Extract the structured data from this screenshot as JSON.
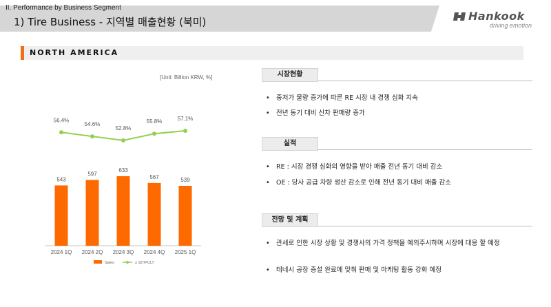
{
  "header": {
    "section_label": "II. Performance by Business Segment",
    "title": "1) Tire Business - 지역별 매출현황 (북미)"
  },
  "brand": {
    "logo_text": "Hankook",
    "tagline": "driving emotion"
  },
  "section": {
    "title": "NORTH AMERICA",
    "accent_color": "#f26a1b"
  },
  "chart_unit": "[Unit: Billion KRW, %]",
  "chart_data": {
    "type": "bar",
    "categories": [
      "2024 1Q",
      "2024 2Q",
      "2024 3Q",
      "2024 4Q",
      "2025 1Q"
    ],
    "series": [
      {
        "name": "Sales",
        "type": "bar",
        "color": "#ff6a00",
        "values": [
          543,
          597,
          633,
          567,
          539
        ]
      },
      {
        "name": "≥ 18\"/PCLT",
        "type": "line",
        "color": "#92d050",
        "values": [
          56.4,
          54.6,
          52.8,
          55.8,
          57.1
        ],
        "value_suffix": "%"
      }
    ],
    "bar_value_range": [
      0,
      633
    ],
    "line_value_range": [
      52.8,
      57.1
    ],
    "legend_position": "bottom",
    "grid": false
  },
  "panels": [
    {
      "label": "시장현황",
      "bullets": [
        "중저가 물량 증가에 따른 RE 시장 내 경쟁 심화 지속",
        "전년 동기 대비 신차 판매량 증가"
      ]
    },
    {
      "label": "실적",
      "bullets": [
        "RE : 시장 경쟁 심화의 영향을 받아 매출 전년 동기 대비 감소",
        "OE : 당사 공급 차량 생산 감소로 인해 전년 동기 대비 매출 감소"
      ]
    },
    {
      "label": "전망 및 계획",
      "bullets": [
        "관세로 인한 시장 상황 및 경쟁사의 가격 정책을 예의주시하며 시장에 대응 할 예정",
        "테네시 공장 증설 완료에 맞춰 판매 및 마케팅 활동 강화 예정"
      ]
    }
  ],
  "bullet_glyph": "•"
}
